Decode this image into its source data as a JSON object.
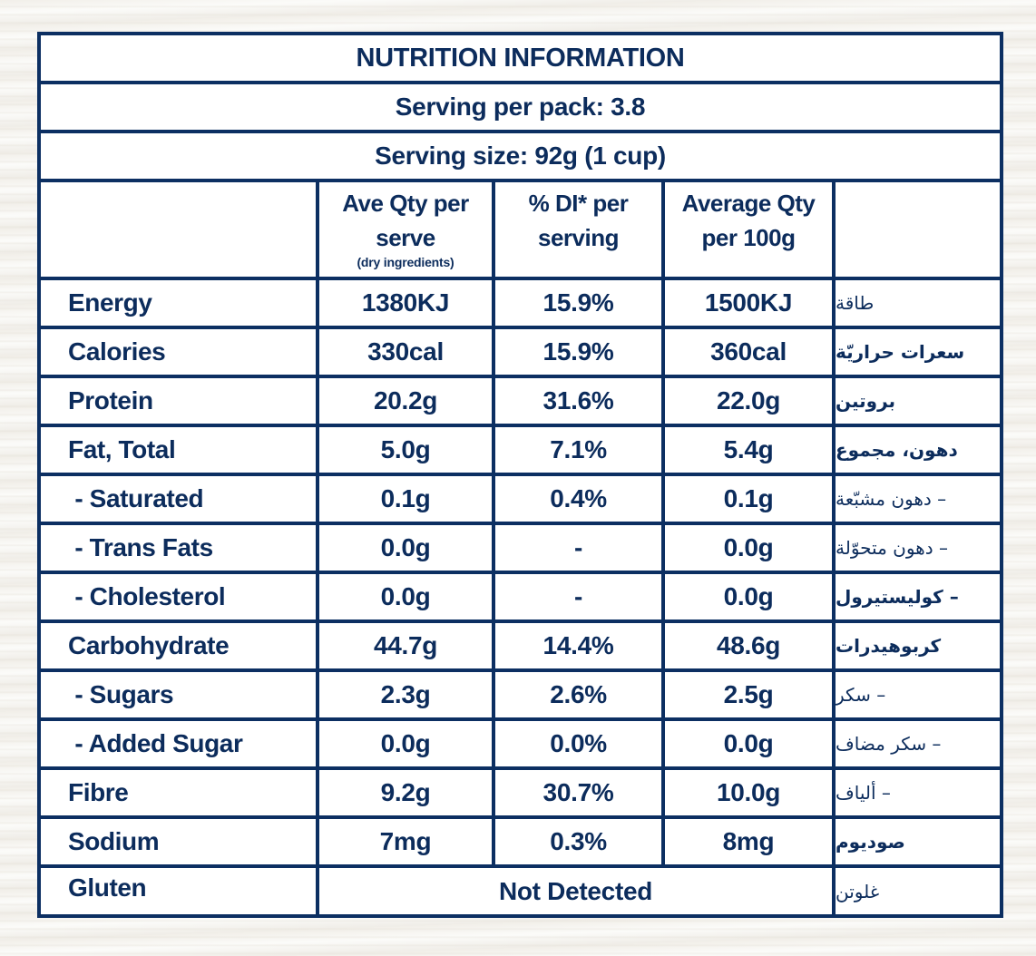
{
  "title": "NUTRITION INFORMATION",
  "serving_per_pack": "Serving per pack:  3.8",
  "serving_size": "Serving size: 92g (1 cup)",
  "columns": {
    "per_serve": "Ave Qty per serve",
    "per_serve_line1": "Ave Qty per",
    "per_serve_line2": "serve",
    "per_serve_note": "(dry ingredients)",
    "di_line1": "% DI* per",
    "di_line2": "serving",
    "per100_line1": "Average Qty",
    "per100_line2": "per 100g"
  },
  "rows": [
    {
      "label": "Energy",
      "per_serve": "1380KJ",
      "di": "15.9%",
      "per100": "1500KJ",
      "arabic": "طاقة",
      "arabic_bold": false
    },
    {
      "label": "Calories",
      "per_serve": "330cal",
      "di": "15.9%",
      "per100": "360cal",
      "arabic": "سعرات حراريّة",
      "arabic_bold": true
    },
    {
      "label": "Protein",
      "per_serve": "20.2g",
      "di": "31.6%",
      "per100": "22.0g",
      "arabic": "بروتين",
      "arabic_bold": true
    },
    {
      "label": "Fat, Total",
      "per_serve": "5.0g",
      "di": "7.1%",
      "per100": "5.4g",
      "arabic": "دهون، مجموع",
      "arabic_bold": true
    },
    {
      "label": " - Saturated",
      "per_serve": "0.1g",
      "di": "0.4%",
      "per100": "0.1g",
      "arabic": "– دهون مشبّعة",
      "arabic_bold": false
    },
    {
      "label": " - Trans Fats",
      "per_serve": "0.0g",
      "di": "-",
      "per100": "0.0g",
      "arabic": "– دهون متحوّلة",
      "arabic_bold": false
    },
    {
      "label": " - Cholesterol",
      "per_serve": "0.0g",
      "di": "-",
      "per100": "0.0g",
      "arabic": "– كوليستيرول",
      "arabic_bold": true
    },
    {
      "label": "Carbohydrate",
      "per_serve": "44.7g",
      "di": "14.4%",
      "per100": "48.6g",
      "arabic": "كربوهيدرات",
      "arabic_bold": true
    },
    {
      "label": " - Sugars",
      "per_serve": "2.3g",
      "di": "2.6%",
      "per100": "2.5g",
      "arabic": "– سكر",
      "arabic_bold": false
    },
    {
      "label": " - Added Sugar",
      "per_serve": "0.0g",
      "di": "0.0%",
      "per100": "0.0g",
      "arabic": "– سكر مضاف",
      "arabic_bold": false
    },
    {
      "label": "Fibre",
      "per_serve": "9.2g",
      "di": "30.7%",
      "per100": "10.0g",
      "arabic": "– ألياف",
      "arabic_bold": false
    },
    {
      "label": "Sodium",
      "per_serve": "7mg",
      "di": "0.3%",
      "per100": "8mg",
      "arabic": "صوديوم",
      "arabic_bold": true
    }
  ],
  "gluten": {
    "label": "Gluten",
    "value": "Not Detected",
    "arabic": "غلوتن"
  },
  "colors": {
    "ink": "#0c2c5c",
    "border": "#0c2f62",
    "panel": "#ffffff"
  }
}
